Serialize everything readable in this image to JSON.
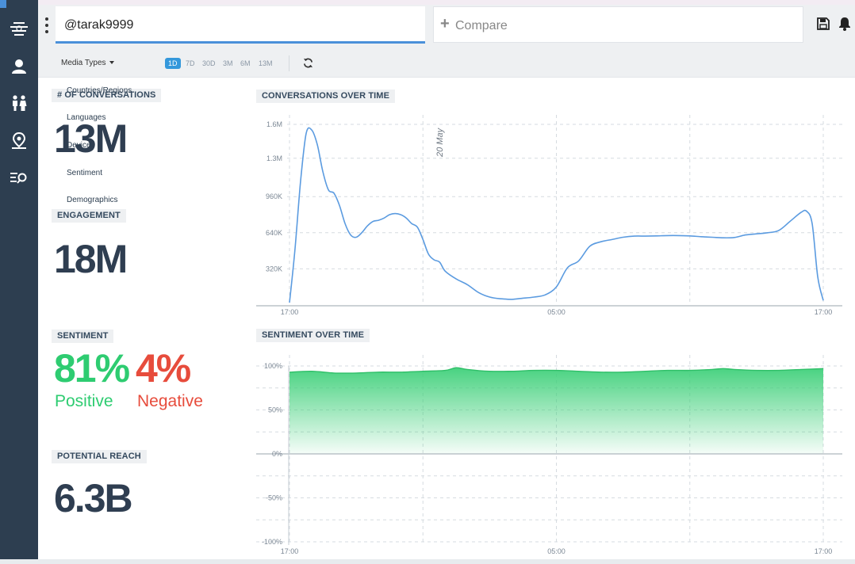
{
  "header": {
    "search_value": "@tarak9999",
    "compare_label": "Compare"
  },
  "sidebar": {
    "items": [
      {
        "icon": "hamburger-stack-icon"
      },
      {
        "icon": "user-icon"
      },
      {
        "icon": "people-icon"
      },
      {
        "icon": "location-pin-icon"
      },
      {
        "icon": "list-search-icon"
      }
    ]
  },
  "toolbar": {
    "media_types": "Media Types",
    "ranges": [
      "1D",
      "7D",
      "30D",
      "3M",
      "6M",
      "13M"
    ],
    "active_range": "1D"
  },
  "dropdown": {
    "items": [
      "Countries/Regions",
      "Languages",
      "Device",
      "Sentiment",
      "Demographics"
    ]
  },
  "panels": {
    "conversations": {
      "title": "# OF CONVERSATIONS",
      "value": "13M"
    },
    "engagement": {
      "title": "ENGAGEMENT",
      "value": "18M"
    },
    "sentiment": {
      "title": "SENTIMENT",
      "positive_value": "81%",
      "positive_label": "Positive",
      "negative_value": "4%",
      "negative_label": "Negative"
    },
    "reach": {
      "title": "POTENTIAL REACH",
      "value": "6.3B"
    }
  },
  "colors": {
    "accent": "#4a90d9",
    "positive": "#2ecc71",
    "negative": "#e74c3c",
    "sidebar": "#2d3e50"
  },
  "chart_data": [
    {
      "type": "line",
      "title": "CONVERSATIONS OVER TIME",
      "yticks": [
        "1.6M",
        "1.3M",
        "960K",
        "640K",
        "320K"
      ],
      "ytick_values": [
        1600000,
        1300000,
        960000,
        640000,
        320000
      ],
      "xticks": [
        "17:00",
        "05:00",
        "17:00"
      ],
      "ylim": [
        0,
        1650000
      ],
      "annotation": "20 May",
      "grid": true,
      "series": [
        {
          "x": [
            0,
            0.25,
            0.5,
            0.75,
            1,
            1.25,
            1.5,
            1.75,
            2,
            2.25,
            2.5,
            2.75,
            3,
            3.25,
            3.5,
            3.75,
            4,
            4.25,
            4.5,
            4.75,
            5,
            5.25,
            5.5,
            5.75,
            6,
            6.25,
            6.5,
            6.75,
            7,
            7.5,
            8,
            8.5,
            9,
            9.5,
            10,
            10.5,
            11,
            11.5,
            12,
            12.5,
            13,
            13.5,
            14,
            14.5,
            15,
            15.5,
            16,
            16.5,
            17,
            17.5,
            18,
            18.5,
            19,
            19.5,
            20,
            20.5,
            21,
            21.5,
            22,
            22.5,
            23,
            23.25,
            23.5,
            23.75,
            24
          ],
          "values": [
            20000,
            500000,
            1100000,
            1520000,
            1550000,
            1420000,
            1180000,
            1020000,
            990000,
            880000,
            720000,
            620000,
            600000,
            640000,
            700000,
            740000,
            750000,
            770000,
            800000,
            810000,
            800000,
            770000,
            720000,
            690000,
            580000,
            450000,
            400000,
            380000,
            300000,
            230000,
            180000,
            110000,
            70000,
            55000,
            50000,
            60000,
            70000,
            90000,
            160000,
            330000,
            390000,
            520000,
            560000,
            580000,
            600000,
            610000,
            610000,
            612000,
            615000,
            615000,
            612000,
            605000,
            600000,
            595000,
            598000,
            620000,
            630000,
            640000,
            660000,
            740000,
            820000,
            830000,
            720000,
            250000,
            40000
          ]
        }
      ]
    },
    {
      "type": "area",
      "title": "SENTIMENT OVER TIME",
      "yticks": [
        "100%",
        "50%",
        "0%",
        "-50%",
        "-100%"
      ],
      "ytick_values": [
        100,
        50,
        0,
        -50,
        -100
      ],
      "xticks": [
        "17:00",
        "05:00",
        "17:00"
      ],
      "ylim": [
        -100,
        100
      ],
      "grid": true,
      "series": [
        {
          "x": [
            0,
            1,
            2,
            3,
            4,
            5,
            6,
            7,
            7.5,
            8,
            9,
            10,
            11,
            12,
            13,
            14,
            15,
            16,
            17,
            18,
            19,
            19.5,
            20,
            21,
            22,
            23,
            24
          ],
          "values": [
            93,
            94,
            92,
            92,
            93,
            93,
            94,
            95,
            98,
            96,
            94,
            94,
            95,
            95,
            94,
            93,
            93,
            94,
            95,
            95,
            96,
            97,
            96,
            95,
            95,
            96,
            97
          ]
        }
      ]
    }
  ]
}
